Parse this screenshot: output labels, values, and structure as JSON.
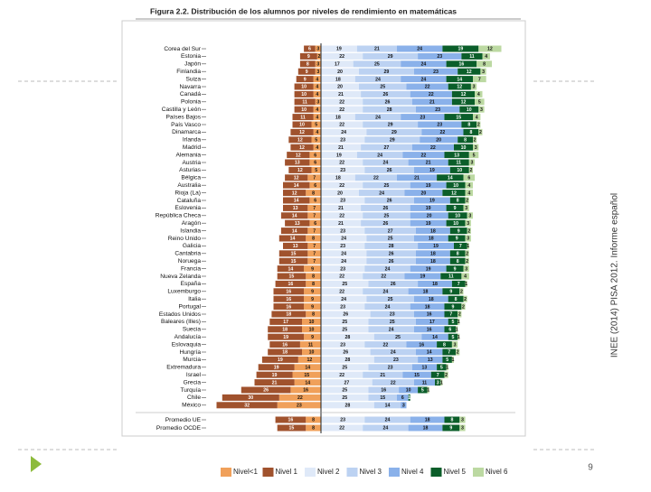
{
  "slide": {
    "side_note": "INEE (2014) PISA 2012. Informe español",
    "page_number": "9"
  },
  "chart_data": {
    "type": "bar",
    "title": "Figura 2.2. Distribución de los alumnos por niveles de rendimiento en matemáticas",
    "categories": [
      "Corea del Sur",
      "Estonia",
      "Japón",
      "Finlandia",
      "Suiza",
      "Navarra",
      "Canadá",
      "Polonia",
      "Castilla y León",
      "Países Bajos",
      "País Vasco",
      "Dinamarca",
      "Irlanda",
      "Madrid",
      "Alemania",
      "Austria",
      "Asturias",
      "Bélgica",
      "Australia",
      "Rioja (La)",
      "Cataluña",
      "Eslovenia",
      "República Checa",
      "Aragón",
      "Islandia",
      "Reino Unido",
      "Galicia",
      "Cantabria",
      "Noruega",
      "Francia",
      "Nueva Zelanda",
      "España",
      "Luxemburgo",
      "Italia",
      "Portugal",
      "Estados Unidos",
      "Baleares (Illes)",
      "Suecia",
      "Andalucía",
      "Eslovaquia",
      "Hungría",
      "Murcia",
      "Extremadura",
      "Israel",
      "Grecia",
      "Turquía",
      "Chile",
      "México",
      "Promedio UE",
      "Promedio OCDE"
    ],
    "series": [
      {
        "name": "Nivel<1",
        "color": "#f0a05a",
        "values": [
          3,
          2,
          3,
          3,
          4,
          4,
          4,
          3,
          4,
          4,
          5,
          4,
          5,
          4,
          6,
          6,
          5,
          7,
          6,
          8,
          6,
          7,
          7,
          6,
          7,
          8,
          7,
          7,
          7,
          9,
          8,
          8,
          9,
          9,
          9,
          8,
          10,
          10,
          9,
          11,
          10,
          12,
          14,
          15,
          14,
          16,
          22,
          23,
          8,
          8
        ]
      },
      {
        "name": "Nivel 1",
        "color": "#a0522d",
        "values": [
          6,
          9,
          8,
          9,
          9,
          10,
          10,
          11,
          10,
          11,
          10,
          12,
          12,
          12,
          12,
          13,
          12,
          12,
          14,
          12,
          14,
          13,
          14,
          13,
          14,
          14,
          13,
          15,
          15,
          14,
          15,
          16,
          16,
          16,
          16,
          18,
          17,
          18,
          19,
          16,
          18,
          19,
          19,
          19,
          21,
          26,
          30,
          32,
          16,
          15
        ]
      },
      {
        "name": "Nivel 2",
        "color": "#dfe9f8",
        "values": [
          19,
          22,
          17,
          20,
          18,
          20,
          21,
          22,
          22,
          18,
          22,
          24,
          23,
          21,
          19,
          22,
          23,
          18,
          22,
          20,
          23,
          21,
          22,
          21,
          23,
          24,
          23,
          24,
          24,
          23,
          22,
          25,
          22,
          24,
          23,
          26,
          25,
          25,
          28,
          23,
          26,
          28,
          25,
          22,
          27,
          25,
          25,
          28,
          23,
          22
        ]
      },
      {
        "name": "Nivel 3",
        "color": "#bcd2f2",
        "values": [
          21,
          29,
          25,
          29,
          24,
          25,
          26,
          26,
          28,
          24,
          29,
          29,
          29,
          27,
          24,
          24,
          26,
          22,
          25,
          24,
          26,
          26,
          25,
          26,
          27,
          25,
          28,
          26,
          26,
          24,
          22,
          26,
          24,
          25,
          24,
          23,
          25,
          24,
          25,
          22,
          24,
          23,
          23,
          21,
          22,
          16,
          15,
          14,
          24,
          24
        ]
      },
      {
        "name": "Nivel 4",
        "color": "#8ab1ea",
        "values": [
          24,
          23,
          24,
          23,
          24,
          22,
          22,
          21,
          23,
          23,
          23,
          22,
          20,
          22,
          22,
          21,
          19,
          21,
          19,
          20,
          19,
          19,
          20,
          19,
          18,
          18,
          19,
          18,
          18,
          19,
          19,
          18,
          18,
          18,
          18,
          16,
          17,
          16,
          14,
          16,
          14,
          13,
          13,
          15,
          11,
          10,
          6,
          3,
          18,
          18
        ]
      },
      {
        "name": "Nivel 5",
        "color": "#0b5e2a",
        "values": [
          19,
          11,
          16,
          12,
          14,
          12,
          12,
          12,
          10,
          15,
          8,
          8,
          8,
          10,
          13,
          11,
          10,
          14,
          10,
          12,
          8,
          9,
          10,
          10,
          9,
          9,
          7,
          8,
          8,
          9,
          11,
          7,
          9,
          8,
          9,
          7,
          5,
          6,
          5,
          8,
          7,
          5,
          5,
          7,
          3,
          5,
          1,
          0,
          8,
          9
        ]
      },
      {
        "name": "Nivel 6",
        "color": "#bcd9a2",
        "values": [
          12,
          4,
          8,
          3,
          7,
          3,
          4,
          5,
          3,
          4,
          2,
          2,
          2,
          3,
          5,
          3,
          2,
          6,
          4,
          4,
          2,
          3,
          3,
          3,
          2,
          3,
          1,
          2,
          2,
          3,
          4,
          1,
          2,
          2,
          2,
          2,
          1,
          1,
          1,
          3,
          2,
          1,
          1,
          2,
          1,
          1,
          0,
          0,
          3,
          3
        ]
      }
    ]
  }
}
